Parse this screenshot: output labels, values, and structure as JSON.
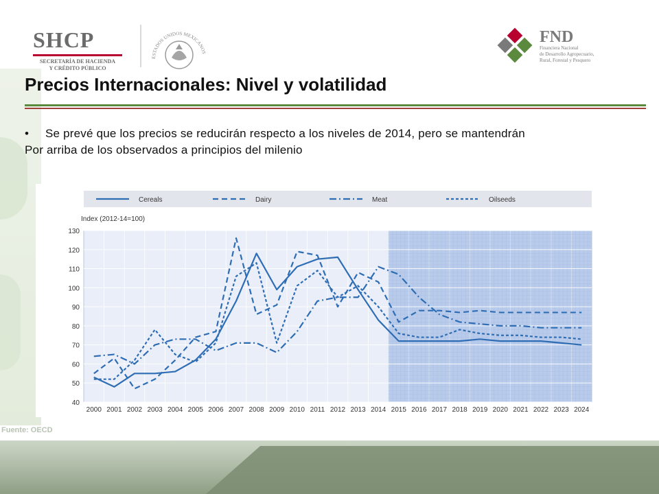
{
  "header": {
    "shcp": {
      "name": "SHCP",
      "subtitle_line1": "SECRETARÍA DE HACIENDA",
      "subtitle_line2": "Y CRÉDITO PÚBLICO",
      "seal_text": "ESTADOS UNIDOS MEXICANOS"
    },
    "fnd": {
      "name": "FND",
      "subtitle_line1": "Financiera Nacional",
      "subtitle_line2": "de Desarrollo Agropecuario,",
      "subtitle_line3": "Rural, Forestal y Pesquero"
    }
  },
  "slide": {
    "title": "Precios Internacionales: Nivel y volatilidad",
    "bullet_line1": "Se prevé que los precios se reducirán respecto a los niveles de 2014, pero se mantendrán",
    "bullet_line2": "Por arriba de los observados a principios del milenio",
    "source": "Fuente: OECD"
  },
  "colors": {
    "title_rule_green": "#5b8a3e",
    "title_rule_red": "#a0403a",
    "series": "#2e6db4",
    "projection_shade": "#b9cbea"
  },
  "chart_data": {
    "type": "line",
    "ylabel": "Index (2012-14=100)",
    "ylim": [
      40,
      130
    ],
    "yticks": [
      40,
      50,
      60,
      70,
      80,
      90,
      100,
      110,
      120,
      130
    ],
    "x": [
      "2000",
      "2001",
      "2002",
      "2003",
      "2004",
      "2005",
      "2006",
      "2007",
      "2008",
      "2009",
      "2010",
      "2011",
      "2012",
      "2013",
      "2014",
      "2015",
      "2016",
      "2017",
      "2018",
      "2019",
      "2020",
      "2021",
      "2022",
      "2023",
      "2024"
    ],
    "projection_from": "2014",
    "legend_position": "top",
    "series": [
      {
        "name": "Cereals",
        "style": "solid",
        "values": [
          53,
          48,
          55,
          55,
          56,
          62,
          73,
          93,
          118,
          99,
          111,
          115,
          116,
          99,
          83,
          72,
          72,
          72,
          72,
          73,
          72,
          72,
          72,
          71,
          70
        ]
      },
      {
        "name": "Dairy",
        "style": "dashed",
        "values": [
          55,
          63,
          47,
          52,
          62,
          74,
          77,
          126,
          86,
          91,
          119,
          117,
          90,
          108,
          103,
          82,
          88,
          88,
          87,
          88,
          87,
          87,
          87,
          87,
          87
        ]
      },
      {
        "name": "Meat",
        "style": "dashdot",
        "values": [
          64,
          65,
          60,
          70,
          73,
          73,
          67,
          71,
          71,
          66,
          77,
          93,
          95,
          95,
          111,
          107,
          95,
          86,
          82,
          81,
          80,
          80,
          79,
          79,
          79
        ]
      },
      {
        "name": "Oilseeds",
        "style": "dotted",
        "values": [
          52,
          52,
          62,
          78,
          65,
          61,
          71,
          106,
          113,
          71,
          101,
          109,
          95,
          101,
          90,
          76,
          74,
          74,
          78,
          76,
          75,
          75,
          74,
          74,
          73
        ]
      }
    ]
  }
}
